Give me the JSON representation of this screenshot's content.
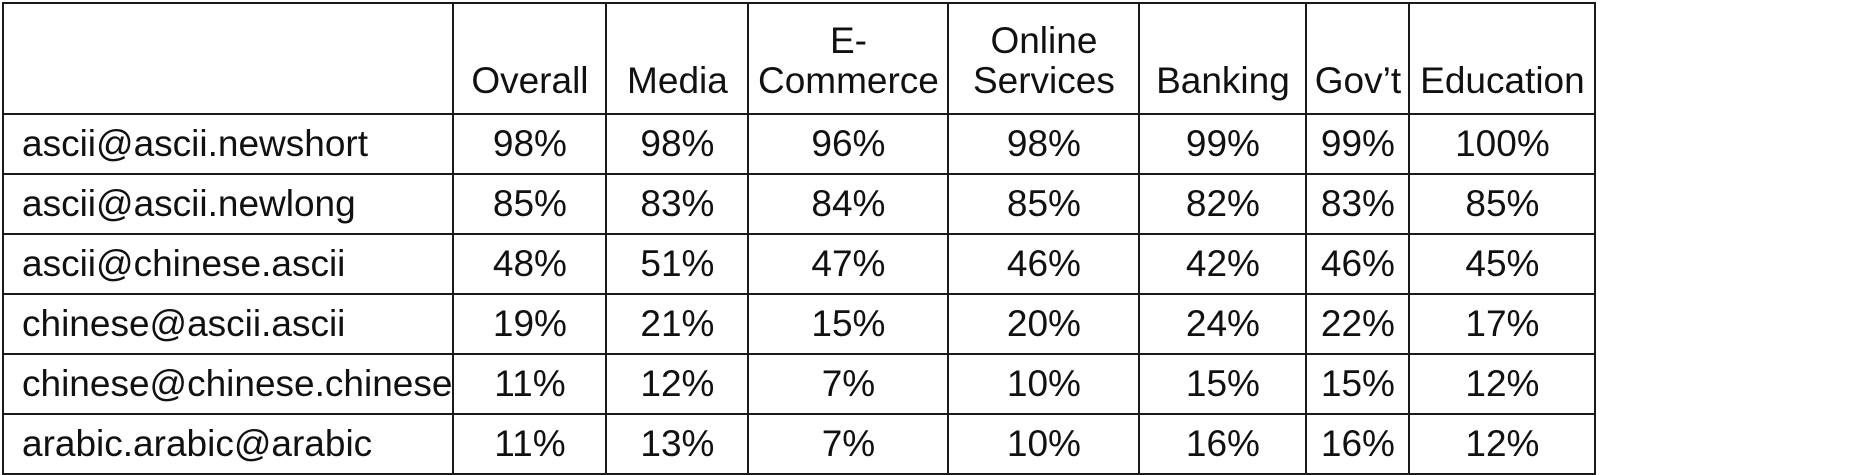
{
  "table": {
    "columns": [
      {
        "line1": "",
        "line2": "Overall"
      },
      {
        "line1": "",
        "line2": "Media"
      },
      {
        "line1": "E-",
        "line2": "Commerce"
      },
      {
        "line1": "Online",
        "line2": "Services"
      },
      {
        "line1": "",
        "line2": "Banking"
      },
      {
        "line1": "",
        "line2": "Gov’t"
      },
      {
        "line1": "",
        "line2": "Education"
      }
    ],
    "rows": [
      {
        "label": "ascii@ascii.newshort",
        "values": [
          "98%",
          "98%",
          "96%",
          "98%",
          "99%",
          "99%",
          "100%"
        ]
      },
      {
        "label": "ascii@ascii.newlong",
        "values": [
          "85%",
          "83%",
          "84%",
          "85%",
          "82%",
          "83%",
          "85%"
        ]
      },
      {
        "label": "ascii@chinese.ascii",
        "values": [
          "48%",
          "51%",
          "47%",
          "46%",
          "42%",
          "46%",
          "45%"
        ]
      },
      {
        "label": "chinese@ascii.ascii",
        "values": [
          "19%",
          "21%",
          "15%",
          "20%",
          "24%",
          "22%",
          "17%"
        ]
      },
      {
        "label": "chinese@chinese.chinese",
        "values": [
          "11%",
          "12%",
          "7%",
          "10%",
          "15%",
          "15%",
          "12%"
        ]
      },
      {
        "label": "arabic.arabic@arabic",
        "values": [
          "11%",
          "13%",
          "7%",
          "10%",
          "16%",
          "16%",
          "12%"
        ]
      }
    ]
  }
}
